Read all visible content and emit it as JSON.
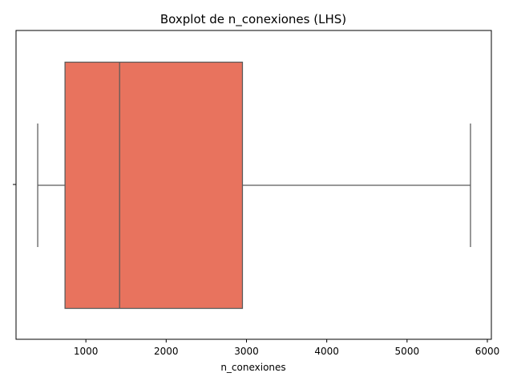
{
  "chart_data": {
    "type": "boxplot",
    "orientation": "horizontal",
    "title": "Boxplot de n_conexiones (LHS)",
    "xlabel": "n_conexiones",
    "ylabel": "",
    "xlim": [
      130,
      6050
    ],
    "xticks": [
      1000,
      2000,
      3000,
      4000,
      5000,
      6000
    ],
    "xtick_labels": [
      "1000",
      "2000",
      "3000",
      "4000",
      "5000",
      "6000"
    ],
    "grid": false,
    "series": [
      {
        "whisker_low": 400,
        "q1": 740,
        "median": 1420,
        "q3": 2950,
        "whisker_high": 5790
      }
    ],
    "box_color": "#e8735e",
    "line_color": "#5a5a5a"
  }
}
